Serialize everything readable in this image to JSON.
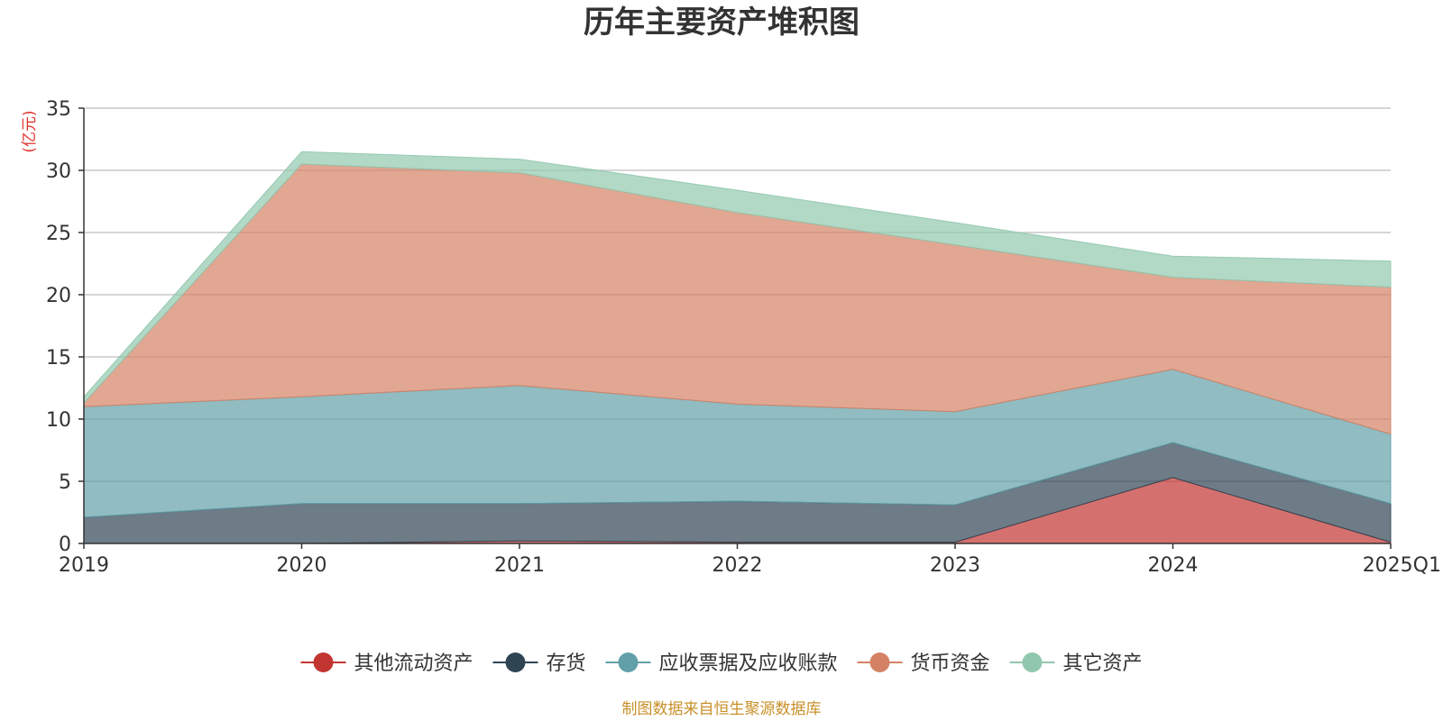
{
  "chart_data": {
    "type": "area",
    "stacked": true,
    "title": "历年主要资产堆积图",
    "y_unit": "(亿元)",
    "categories": [
      "2019",
      "2020",
      "2021",
      "2022",
      "2023",
      "2024",
      "2025Q1"
    ],
    "ylim": [
      0,
      35
    ],
    "y_ticks": [
      0,
      5,
      10,
      15,
      20,
      25,
      30,
      35
    ],
    "grid": true,
    "legend_position": "bottom",
    "series": [
      {
        "name": "其他流动资产",
        "color": "#c23531",
        "values": [
          0.0,
          0.0,
          0.2,
          0.1,
          0.1,
          5.3,
          0.1
        ]
      },
      {
        "name": "存货",
        "color": "#2f4554",
        "values": [
          2.1,
          3.2,
          3.0,
          3.3,
          3.0,
          2.8,
          3.1
        ]
      },
      {
        "name": "应收票据及应收账款",
        "color": "#61a0a8",
        "values": [
          8.9,
          8.6,
          9.5,
          7.8,
          7.5,
          5.9,
          5.6
        ]
      },
      {
        "name": "货币资金",
        "color": "#d48265",
        "values": [
          0.3,
          18.7,
          17.1,
          15.4,
          13.4,
          7.4,
          11.8
        ]
      },
      {
        "name": "其它资产",
        "color": "#91c7ae",
        "values": [
          0.5,
          1.0,
          1.1,
          1.8,
          1.8,
          1.7,
          2.1
        ]
      }
    ]
  },
  "source_note": "制图数据来自恒生聚源数据库"
}
